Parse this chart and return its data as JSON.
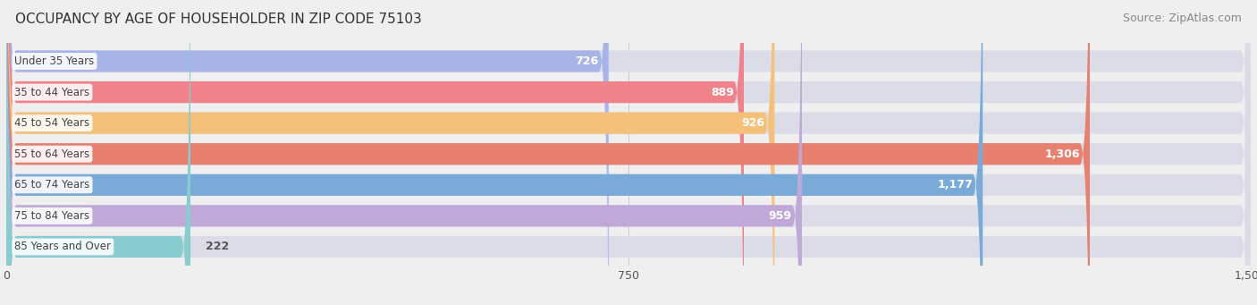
{
  "title": "OCCUPANCY BY AGE OF HOUSEHOLDER IN ZIP CODE 75103",
  "source": "Source: ZipAtlas.com",
  "categories": [
    "Under 35 Years",
    "35 to 44 Years",
    "45 to 54 Years",
    "55 to 64 Years",
    "65 to 74 Years",
    "75 to 84 Years",
    "85 Years and Over"
  ],
  "values": [
    726,
    889,
    926,
    1306,
    1177,
    959,
    222
  ],
  "bar_colors": [
    "#a8b4e8",
    "#f0828c",
    "#f5c07a",
    "#e88070",
    "#7aaad8",
    "#c0a8d8",
    "#88ccd0"
  ],
  "xlim": [
    0,
    1500
  ],
  "xticks": [
    0,
    750,
    1500
  ],
  "background_color": "#efefef",
  "bar_bg_color": "#dcdce8",
  "title_fontsize": 11,
  "source_fontsize": 9,
  "bar_height": 0.7,
  "value_fontsize": 9,
  "rounding_size": 12
}
